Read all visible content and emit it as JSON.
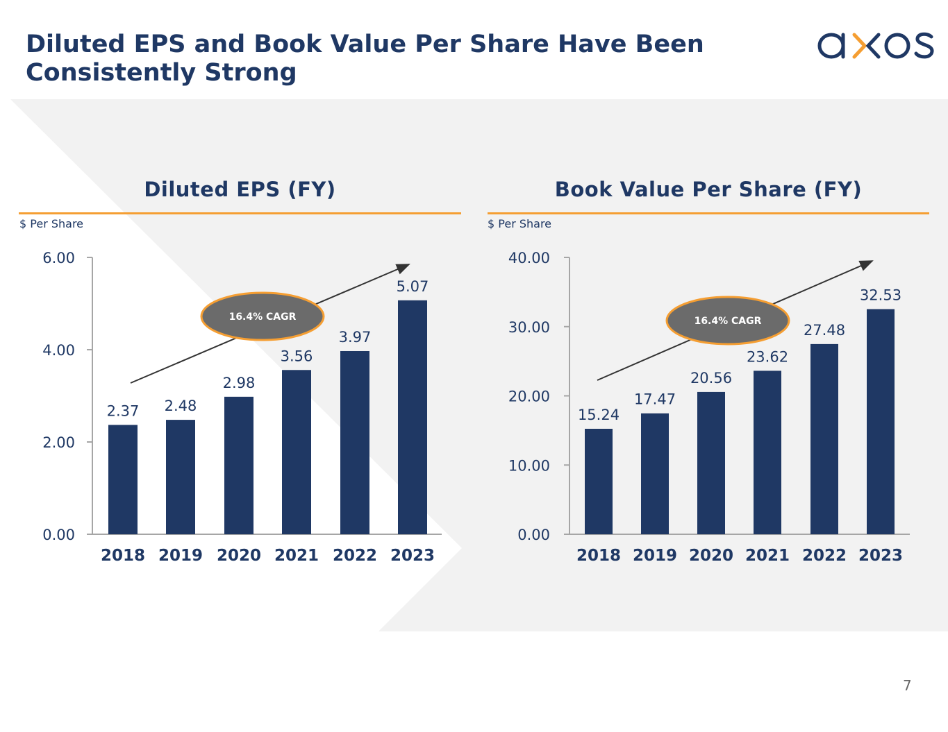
{
  "header": {
    "title_line1": "Diluted EPS and Book Value Per Share Have Been",
    "title_line2": "Consistently Strong",
    "logo_text": "axos"
  },
  "colors": {
    "navy": "#1f3864",
    "orange": "#f59e32",
    "ellipse_gray": "#6b6b6b",
    "background_gray": "#f2f2f2"
  },
  "page_number": "7",
  "chart_data": [
    {
      "type": "bar",
      "title": "Diluted EPS (FY)",
      "ylabel": "$ Per Share",
      "categories": [
        "2018",
        "2019",
        "2020",
        "2021",
        "2022",
        "2023"
      ],
      "values": [
        2.37,
        2.48,
        2.98,
        3.56,
        3.97,
        5.07
      ],
      "data_labels": [
        "2.37",
        "2.48",
        "2.98",
        "3.56",
        "3.97",
        "5.07"
      ],
      "ylim": [
        0,
        6
      ],
      "yticks": [
        "0.00",
        "2.00",
        "4.00",
        "6.00"
      ],
      "grid": false,
      "annotation": "16.4% CAGR"
    },
    {
      "type": "bar",
      "title": "Book Value Per Share (FY)",
      "ylabel": "$ Per Share",
      "categories": [
        "2018",
        "2019",
        "2020",
        "2021",
        "2022",
        "2023"
      ],
      "values": [
        15.24,
        17.47,
        20.56,
        23.62,
        27.48,
        32.53
      ],
      "data_labels": [
        "15.24",
        "17.47",
        "20.56",
        "23.62",
        "27.48",
        "32.53"
      ],
      "ylim": [
        0,
        40
      ],
      "yticks": [
        "0.00",
        "10.00",
        "20.00",
        "30.00",
        "40.00"
      ],
      "grid": false,
      "annotation": "16.4% CAGR"
    }
  ]
}
